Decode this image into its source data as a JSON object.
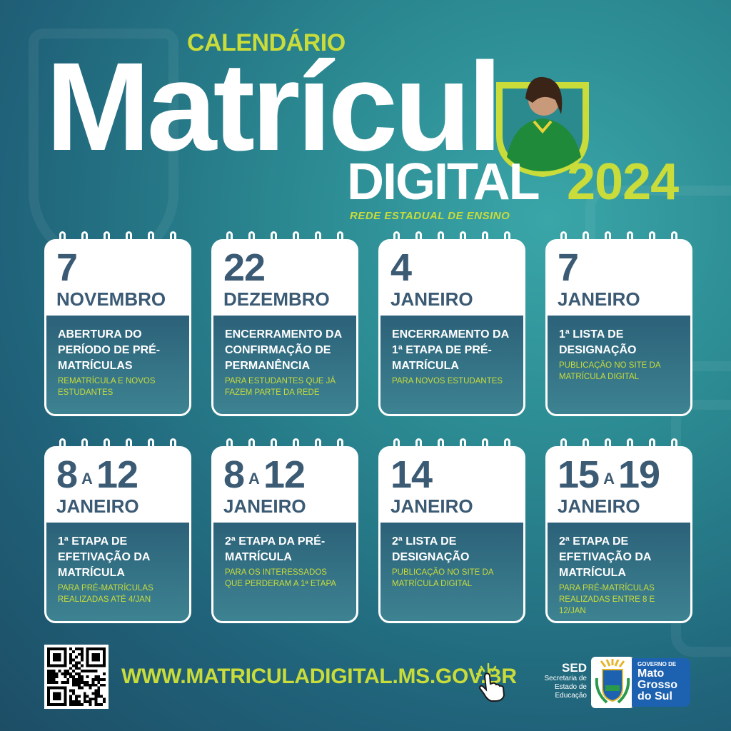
{
  "header": {
    "kicker": "CALENDÁRIO",
    "title": "Matrícula",
    "subtitle": "DIGITAL",
    "year": "2024",
    "tagline": "REDE ESTADUAL DE ENSINO"
  },
  "cards": [
    {
      "day": "7",
      "month": "NOVEMBRO",
      "title": "ABERTURA DO PERÍODO DE PRÉ-MATRÍCULAS",
      "note": "REMATRÍCULA E NOVOS ESTUDANTES"
    },
    {
      "day": "22",
      "month": "DEZEMBRO",
      "title": "ENCERRAMENTO DA CONFIRMAÇÃO DE PERMANÊNCIA",
      "note": "PARA ESTUDANTES QUE JÁ FAZEM PARTE DA REDE"
    },
    {
      "day": "4",
      "month": "JANEIRO",
      "title": "ENCERRAMENTO DA 1ª ETAPA DE PRÉ-MATRÍCULA",
      "note": "PARA NOVOS ESTUDANTES"
    },
    {
      "day": "7",
      "month": "JANEIRO",
      "title": "1ª LISTA DE DESIGNAÇÃO",
      "note": "PUBLICAÇÃO NO SITE DA MATRÍCULA DIGITAL"
    },
    {
      "day": "8",
      "sep": "A",
      "day_end": "12",
      "month": "JANEIRO",
      "title": "1ª ETAPA DE EFETIVAÇÃO DA MATRÍCULA",
      "note": "PARA PRÉ-MATRÍCULAS REALIZADAS ATÉ 4/JAN"
    },
    {
      "day": "8",
      "sep": "A",
      "day_end": "12",
      "month": "JANEIRO",
      "title": "2ª ETAPA DA PRÉ-MATRÍCULA",
      "note": "PARA OS INTERESSADOS QUE PERDERAM A 1ª ETAPA"
    },
    {
      "day": "14",
      "month": "JANEIRO",
      "title": "2ª LISTA DE DESIGNAÇÃO",
      "note": "PUBLICAÇÃO NO SITE DA MATRÍCULA DIGITAL"
    },
    {
      "day": "15",
      "sep": "A",
      "day_end": "19",
      "month": "JANEIRO",
      "title": "2ª ETAPA DE EFETIVAÇÃO DA MATRÍCULA",
      "note": "PARA PRÉ-MATRÍCULAS REALIZADAS ENTRE 8 E 12/JAN"
    }
  ],
  "footer": {
    "url": "WWW.MATRICULADIGITAL.MS.GOV.BR",
    "sed": "SED",
    "sed_lines": [
      "Secretaria de",
      "Estado de",
      "Educação"
    ],
    "gov_top": "GOVERNO DE",
    "gov_lines": [
      "Mato",
      "Grosso",
      "do Sul"
    ]
  },
  "colors": {
    "accent": "#c9dc3a",
    "date": "#3b5a74",
    "gov_blue": "#1d62b0"
  },
  "icons": [
    "qr-code-icon",
    "pointing-hand-icon",
    "state-crest-icon"
  ]
}
